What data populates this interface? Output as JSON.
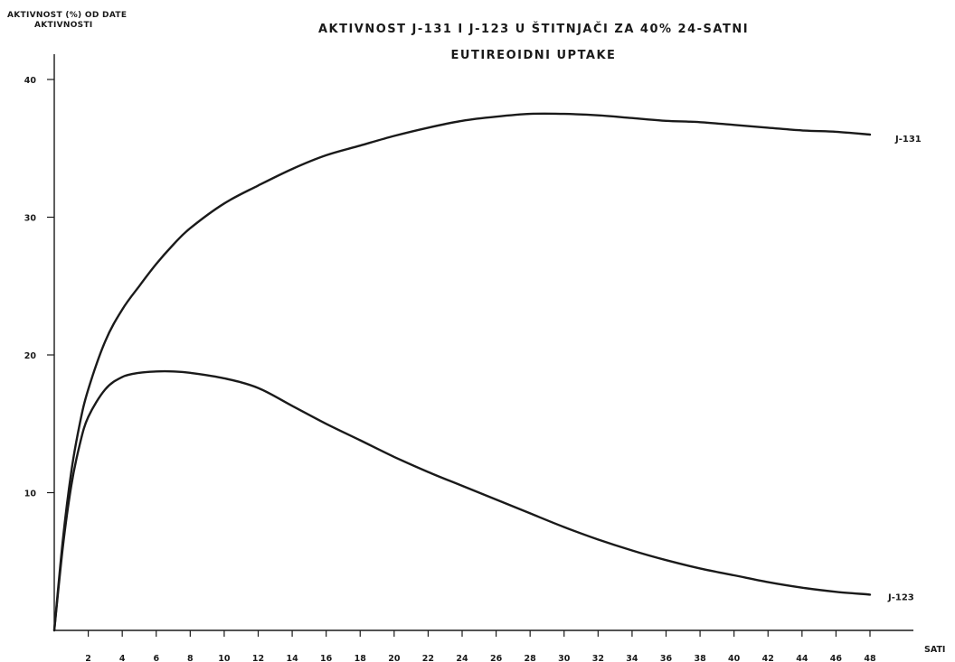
{
  "chart_data": {
    "type": "line",
    "title_line1": "AKTIVNOST J-131 I J-123 U ŠTITNJAČI ZA 40% 24-SATNI",
    "title_line2": "EUTIREOIDNI UPTAKE",
    "ylabel_line1": "AKTIVNOST (%) OD DATE",
    "ylabel_line2": "AKTIVNOSTI",
    "xlabel": "SATI",
    "xlim": [
      0,
      48
    ],
    "ylim": [
      0,
      40
    ],
    "x_ticks": [
      2,
      4,
      6,
      8,
      10,
      12,
      14,
      16,
      18,
      20,
      22,
      24,
      26,
      28,
      30,
      32,
      34,
      36,
      38,
      40,
      42,
      44,
      46,
      48
    ],
    "x_tick_labels": [
      "2",
      "4",
      "6",
      "8",
      "10",
      "12",
      "14",
      "16",
      "18",
      "20",
      "22",
      "24",
      "26",
      "28",
      "30",
      "32",
      "34",
      "36",
      "38",
      "40",
      "42",
      "44",
      "46",
      "48"
    ],
    "y_ticks": [
      10,
      20,
      30,
      40
    ],
    "y_tick_labels": [
      "10",
      "20",
      "30",
      "40"
    ],
    "grid": false,
    "series": [
      {
        "name": "J-131",
        "x": [
          0,
          0.5,
          1,
          1.5,
          2,
          3,
          4,
          5,
          6,
          7,
          8,
          10,
          12,
          14,
          16,
          18,
          20,
          22,
          24,
          26,
          28,
          30,
          32,
          34,
          36,
          38,
          40,
          42,
          44,
          46,
          48
        ],
        "y": [
          0,
          6.5,
          11.5,
          15.0,
          17.5,
          21.0,
          23.3,
          25.0,
          26.6,
          28.0,
          29.2,
          31.0,
          32.3,
          33.5,
          34.5,
          35.2,
          35.9,
          36.5,
          37.0,
          37.3,
          37.5,
          37.5,
          37.4,
          37.2,
          37.0,
          36.9,
          36.7,
          36.5,
          36.3,
          36.2,
          36.0
        ]
      },
      {
        "name": "J-123",
        "x": [
          0,
          0.5,
          1,
          1.5,
          2,
          3,
          4,
          5,
          6,
          7,
          8,
          10,
          12,
          14,
          16,
          18,
          20,
          22,
          24,
          26,
          28,
          30,
          32,
          34,
          36,
          38,
          40,
          42,
          44,
          46,
          48
        ],
        "y": [
          0,
          6.0,
          10.5,
          13.5,
          15.5,
          17.5,
          18.4,
          18.7,
          18.8,
          18.8,
          18.7,
          18.3,
          17.6,
          16.3,
          15.0,
          13.8,
          12.6,
          11.5,
          10.5,
          9.5,
          8.5,
          7.5,
          6.6,
          5.8,
          5.1,
          4.5,
          4.0,
          3.5,
          3.1,
          2.8,
          2.6
        ]
      }
    ]
  }
}
